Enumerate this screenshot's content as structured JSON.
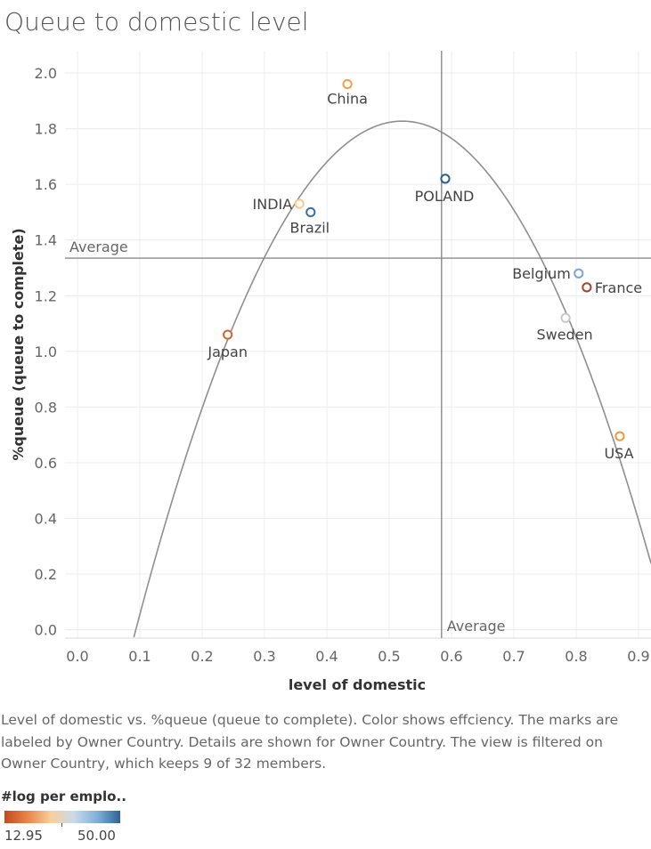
{
  "title": "Queue to domestic level",
  "caption": "Level of domestic vs. %queue (queue to complete).  Color shows effciency.  The marks are labeled by Owner Country.  Details are shown for Owner Country. The view is filtered on Owner Country, which keeps 9 of 32 members.",
  "legend": {
    "title": "#log per emplo..",
    "min_label": "12.95",
    "max_label": "50.00",
    "colors": [
      "#c4491f",
      "#e8844a",
      "#f8cf9b",
      "#c9dbe9",
      "#7fb0d8",
      "#2f6396"
    ]
  },
  "chart_data": {
    "type": "scatter",
    "xlabel": "level of domestic",
    "ylabel": "%queue (queue to complete)",
    "xlim": [
      -0.02,
      0.92
    ],
    "ylim": [
      -0.03,
      2.08
    ],
    "xticks": [
      "0.0",
      "0.1",
      "0.2",
      "0.3",
      "0.4",
      "0.5",
      "0.6",
      "0.7",
      "0.8",
      "0.9"
    ],
    "yticks": [
      "0.0",
      "0.2",
      "0.4",
      "0.6",
      "0.8",
      "1.0",
      "1.2",
      "1.4",
      "1.6",
      "1.8",
      "2.0"
    ],
    "grid": true,
    "points": [
      {
        "label": "China",
        "x": 0.433,
        "y": 1.96,
        "color": "#f2a04a"
      },
      {
        "label": "POLAND",
        "x": 0.59,
        "y": 1.62,
        "color": "#2f5f8a"
      },
      {
        "label": "INDIA",
        "x": 0.356,
        "y": 1.53,
        "color": "#f5c98f"
      },
      {
        "label": "Brazil",
        "x": 0.374,
        "y": 1.5,
        "color": "#3a6ea5"
      },
      {
        "label": "Belgium",
        "x": 0.804,
        "y": 1.28,
        "color": "#79a8d6"
      },
      {
        "label": "France",
        "x": 0.817,
        "y": 1.23,
        "color": "#a4452a"
      },
      {
        "label": "Sweden",
        "x": 0.783,
        "y": 1.12,
        "color": "#c8c8c8"
      },
      {
        "label": "Japan",
        "x": 0.241,
        "y": 1.06,
        "color": "#d0652c"
      },
      {
        "label": "USA",
        "x": 0.87,
        "y": 0.695,
        "color": "#e89a3c"
      }
    ],
    "trend_line": {
      "type": "polynomial",
      "degree": 2,
      "coefficients": [
        -0.887,
        10.414,
        -9.99
      ]
    },
    "reference_lines": [
      {
        "axis": "y",
        "value": 1.335,
        "label": "Average"
      },
      {
        "axis": "x",
        "value": 0.584,
        "label": "Average"
      }
    ]
  }
}
